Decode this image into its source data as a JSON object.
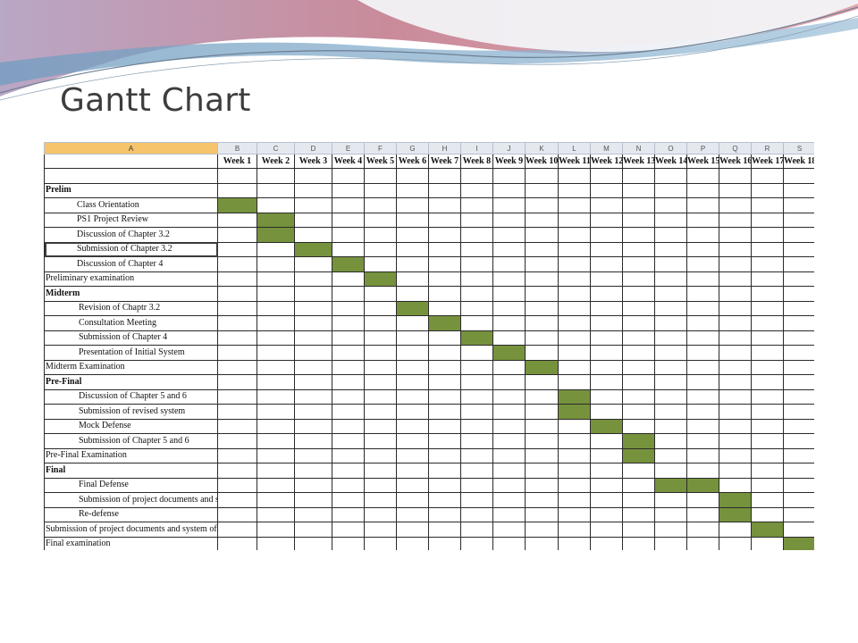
{
  "slide": {
    "title": "Gantt Chart"
  },
  "colors": {
    "bar": "#76923c",
    "header_selected": "#f5c46b",
    "header_bg": "#e4e8ef"
  },
  "sheet": {
    "column_letters": [
      "A",
      "B",
      "C",
      "D",
      "E",
      "F",
      "G",
      "H",
      "I",
      "J",
      "K",
      "L",
      "M",
      "N",
      "O",
      "P",
      "Q",
      "R",
      "S"
    ],
    "weeks": [
      "Week 1",
      "Week 2",
      "Week 3",
      "Week 4",
      "Week 5",
      "Week 6",
      "Week 7",
      "Week 8",
      "Week 9",
      "Week 10",
      "Week 11",
      "Week 12",
      "Week 13",
      "Week 14",
      "Week 15",
      "Week 16",
      "Week 17",
      "Week 18"
    ],
    "rows": [
      {
        "label": "",
        "level": 0,
        "bold": false,
        "weeks": []
      },
      {
        "label": "Prelim",
        "level": 0,
        "bold": true,
        "weeks": []
      },
      {
        "label": "Class Orientation",
        "level": 1,
        "bold": false,
        "weeks": [
          1
        ]
      },
      {
        "label": "PS1 Project Review",
        "level": 1,
        "bold": false,
        "weeks": [
          2
        ]
      },
      {
        "label": "Discussion of Chapter 3.2",
        "level": 1,
        "bold": false,
        "weeks": [
          2
        ]
      },
      {
        "label": "Submission of Chapter 3.2",
        "level": 1,
        "bold": false,
        "weeks": [
          3
        ],
        "active": true
      },
      {
        "label": "Discussion of Chapter 4",
        "level": 1,
        "bold": false,
        "weeks": [
          4
        ]
      },
      {
        "label": "Preliminary examination",
        "level": 0,
        "bold": false,
        "weeks": [
          5
        ]
      },
      {
        "label": "Midterm",
        "level": 0,
        "bold": true,
        "weeks": []
      },
      {
        "label": "Revision of Chaptr 3.2",
        "level": 2,
        "bold": false,
        "weeks": [
          6
        ]
      },
      {
        "label": "Consultation Meeting",
        "level": 2,
        "bold": false,
        "weeks": [
          7
        ]
      },
      {
        "label": "Submission of Chapter 4",
        "level": 2,
        "bold": false,
        "weeks": [
          8
        ]
      },
      {
        "label": "Presentation of Initial System",
        "level": 2,
        "bold": false,
        "weeks": [
          9
        ]
      },
      {
        "label": "Midterm Examination",
        "level": 0,
        "bold": false,
        "weeks": [
          10
        ]
      },
      {
        "label": "Pre-Final",
        "level": 0,
        "bold": true,
        "weeks": []
      },
      {
        "label": "Discussion of Chapter 5 and 6",
        "level": 2,
        "bold": false,
        "weeks": [
          11
        ]
      },
      {
        "label": "Submission of revised system",
        "level": 2,
        "bold": false,
        "weeks": [
          11
        ]
      },
      {
        "label": "Mock Defense",
        "level": 2,
        "bold": false,
        "weeks": [
          12
        ]
      },
      {
        "label": "Submission of Chapter 5 and 6",
        "level": 2,
        "bold": false,
        "weeks": [
          13
        ]
      },
      {
        "label": "Pre-Final Examination",
        "level": 0,
        "bold": false,
        "weeks": [
          13
        ]
      },
      {
        "label": "Final",
        "level": 0,
        "bold": true,
        "weeks": []
      },
      {
        "label": "Final Defense",
        "level": 2,
        "bold": false,
        "weeks": [
          14,
          15
        ]
      },
      {
        "label": "Submission of project documents and system",
        "level": 2,
        "bold": false,
        "weeks": [
          16
        ]
      },
      {
        "label": "Re-defense",
        "level": 2,
        "bold": false,
        "weeks": [
          16
        ]
      },
      {
        "label": "Submission of project documents and system of redefense team",
        "level": 0,
        "bold": false,
        "weeks": [
          17
        ]
      },
      {
        "label": "Final examination",
        "level": 0,
        "bold": false,
        "weeks": [
          18
        ]
      }
    ]
  }
}
